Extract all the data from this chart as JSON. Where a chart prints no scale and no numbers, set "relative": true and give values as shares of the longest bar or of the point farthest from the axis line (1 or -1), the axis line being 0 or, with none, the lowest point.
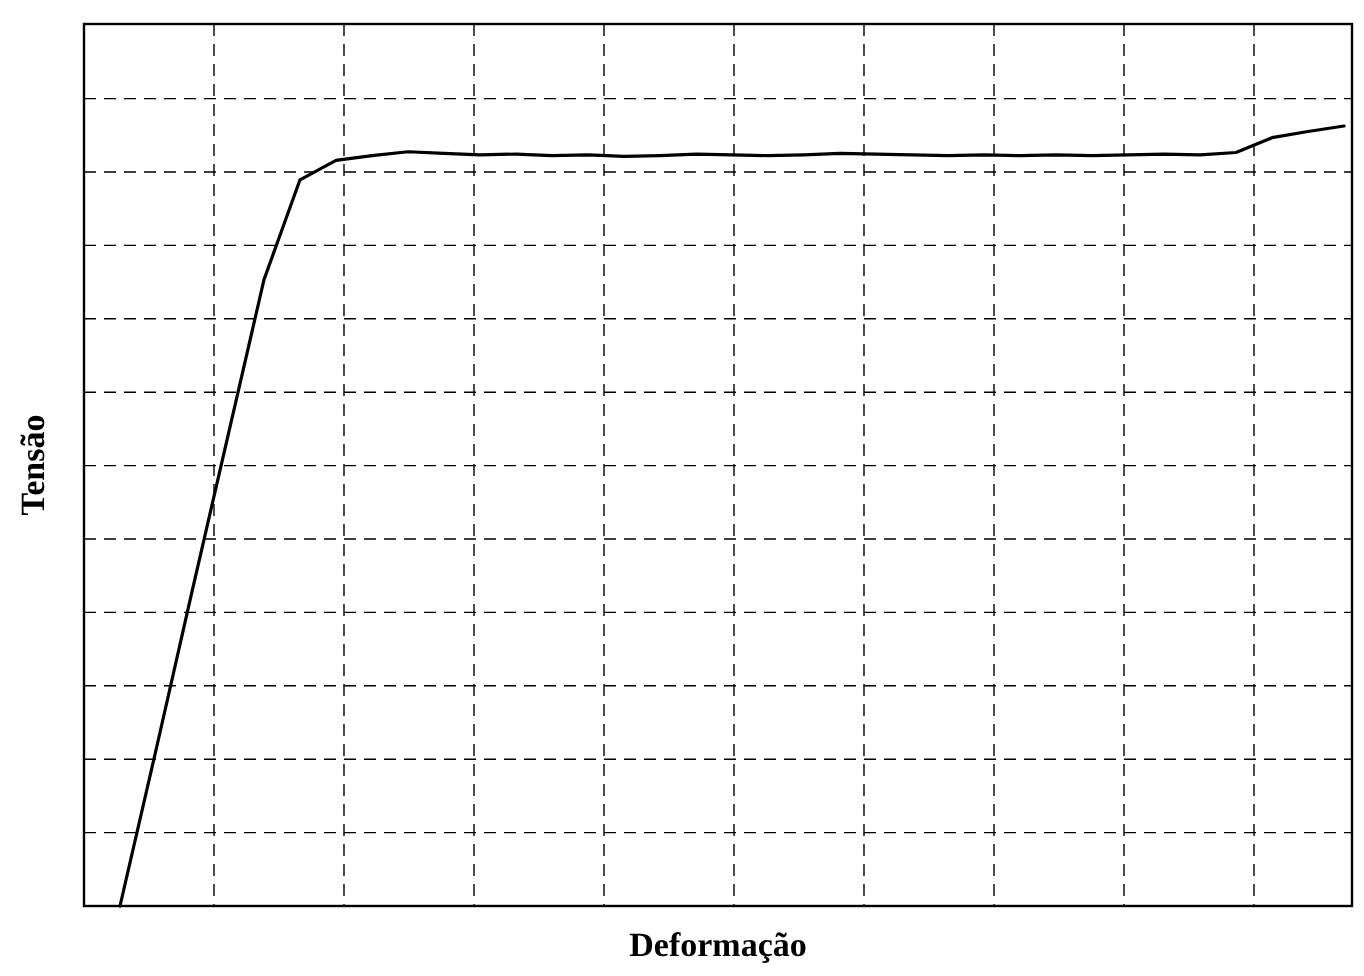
{
  "chart_data": {
    "type": "line",
    "xlabel": "Deformação",
    "ylabel": "Tensão",
    "relative": true,
    "grid": true,
    "color": "#000000",
    "categories": [
      null,
      null,
      null,
      null,
      null,
      null,
      null,
      null,
      null,
      null,
      null,
      null,
      null,
      null,
      null,
      null,
      null,
      null,
      null,
      null,
      null,
      null,
      null,
      null,
      null,
      null,
      null,
      null,
      null,
      null,
      null,
      null,
      null,
      null,
      null
    ],
    "values": [
      0,
      0.2,
      0.403,
      0.603,
      0.803,
      0.931,
      0.956,
      0.962,
      0.967,
      0.965,
      0.963,
      0.964,
      0.962,
      0.963,
      0.961,
      0.962,
      0.964,
      0.963,
      0.962,
      0.963,
      0.965,
      0.964,
      0.963,
      0.962,
      0.963,
      0.962,
      0.963,
      0.962,
      0.963,
      0.964,
      0.963,
      0.966,
      0.985,
      0.993,
      1
    ]
  }
}
